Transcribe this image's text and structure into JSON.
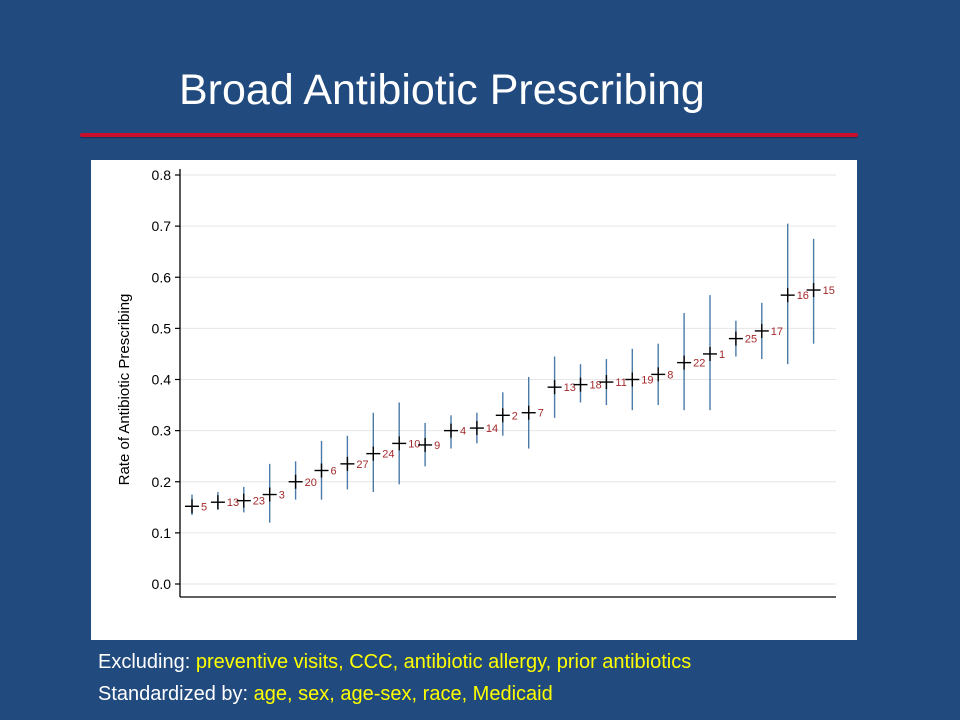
{
  "slide": {
    "title": "Broad Antibiotic Prescribing",
    "accent_color": "#c8102e",
    "background_color": "#214a7e"
  },
  "footnotes": {
    "excluding_label": "Excluding:",
    "excluding_value": "preventive visits, CCC, antibiotic allergy, prior antibiotics",
    "standardized_label": "Standardized by:",
    "standardized_value": "age, sex, age-sex, race, Medicaid"
  },
  "chart_data": {
    "type": "scatter",
    "title": "",
    "xlabel": "",
    "ylabel": "Rate of Antibiotic Prescribing",
    "ylim": [
      0,
      0.8
    ],
    "yticks": [
      "0.0",
      "0.1",
      "0.2",
      "0.3",
      "0.4",
      "0.5",
      "0.6",
      "0.7",
      "0.8"
    ],
    "grid": true,
    "legend": "none",
    "colors": {
      "interval": "#4a7aa8",
      "point": "#000000",
      "label": "#a3292b",
      "grid": "#e6e6e6"
    },
    "points": [
      {
        "label": "5",
        "rank": 1,
        "rate": 0.152,
        "low": 0.135,
        "high": 0.175
      },
      {
        "label": "13",
        "rank": 2,
        "rate": 0.16,
        "low": 0.145,
        "high": 0.18
      },
      {
        "label": "23",
        "rank": 3,
        "rate": 0.163,
        "low": 0.14,
        "high": 0.19
      },
      {
        "label": "3",
        "rank": 4,
        "rate": 0.175,
        "low": 0.12,
        "high": 0.235
      },
      {
        "label": "20",
        "rank": 5,
        "rate": 0.2,
        "low": 0.165,
        "high": 0.24
      },
      {
        "label": "6",
        "rank": 6,
        "rate": 0.222,
        "low": 0.165,
        "high": 0.28
      },
      {
        "label": "27",
        "rank": 7,
        "rate": 0.235,
        "low": 0.185,
        "high": 0.29
      },
      {
        "label": "24",
        "rank": 8,
        "rate": 0.255,
        "low": 0.18,
        "high": 0.335
      },
      {
        "label": "10",
        "rank": 9,
        "rate": 0.275,
        "low": 0.195,
        "high": 0.355
      },
      {
        "label": "9",
        "rank": 10,
        "rate": 0.272,
        "low": 0.23,
        "high": 0.315
      },
      {
        "label": "4",
        "rank": 11,
        "rate": 0.3,
        "low": 0.265,
        "high": 0.33
      },
      {
        "label": "14",
        "rank": 12,
        "rate": 0.305,
        "low": 0.275,
        "high": 0.335
      },
      {
        "label": "2",
        "rank": 13,
        "rate": 0.33,
        "low": 0.29,
        "high": 0.375
      },
      {
        "label": "7",
        "rank": 14,
        "rate": 0.335,
        "low": 0.265,
        "high": 0.405
      },
      {
        "label": "13",
        "rank": 15,
        "rate": 0.385,
        "low": 0.325,
        "high": 0.445
      },
      {
        "label": "18",
        "rank": 16,
        "rate": 0.39,
        "low": 0.355,
        "high": 0.43
      },
      {
        "label": "11",
        "rank": 17,
        "rate": 0.395,
        "low": 0.35,
        "high": 0.44
      },
      {
        "label": "19",
        "rank": 18,
        "rate": 0.4,
        "low": 0.34,
        "high": 0.46
      },
      {
        "label": "8",
        "rank": 19,
        "rate": 0.41,
        "low": 0.35,
        "high": 0.47
      },
      {
        "label": "22",
        "rank": 20,
        "rate": 0.433,
        "low": 0.34,
        "high": 0.53
      },
      {
        "label": "1",
        "rank": 21,
        "rate": 0.45,
        "low": 0.34,
        "high": 0.565
      },
      {
        "label": "25",
        "rank": 22,
        "rate": 0.48,
        "low": 0.445,
        "high": 0.515
      },
      {
        "label": "17",
        "rank": 23,
        "rate": 0.495,
        "low": 0.44,
        "high": 0.55
      },
      {
        "label": "16",
        "rank": 24,
        "rate": 0.565,
        "low": 0.43,
        "high": 0.705
      },
      {
        "label": "15",
        "rank": 25,
        "rate": 0.575,
        "low": 0.47,
        "high": 0.675
      }
    ]
  }
}
